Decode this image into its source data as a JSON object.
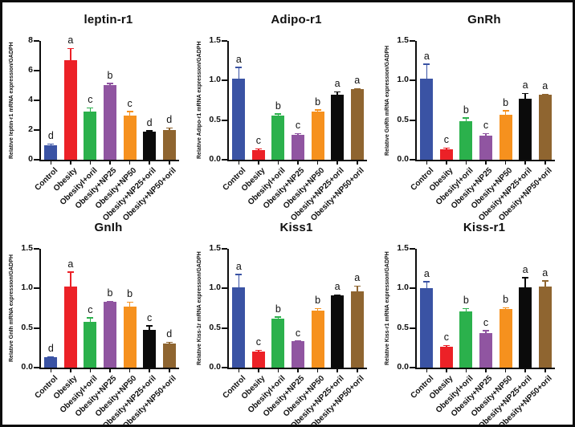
{
  "figure": {
    "background": "#ffffff",
    "border_color": "#0d0d0d"
  },
  "palette": {
    "bar_colors": [
      "#3A53A4",
      "#EC2127",
      "#2BB14C",
      "#9055A1",
      "#F6911E",
      "#0B0B0B",
      "#8F6530"
    ],
    "axis_color": "#0d0d0d",
    "letter_color": "#111111"
  },
  "chart_data": [
    {
      "type": "bar",
      "title": "leptin-r1",
      "xlabel": "",
      "ylabel": "Relative leptin-r1 mRNA expression/GADPH",
      "categories": [
        "Control",
        "Obesity",
        "Obesityl+oril",
        "Obesity+NP25",
        "Obesity+NP50",
        "Obesity+NP25+oril",
        "Obesity+NP50+oril"
      ],
      "values": [
        1.0,
        6.7,
        3.25,
        5.05,
        3.0,
        1.9,
        2.0
      ],
      "errors": [
        0.08,
        0.8,
        0.25,
        0.1,
        0.25,
        0.06,
        0.15
      ],
      "letters": [
        "d",
        "a",
        "c",
        "b",
        "c",
        "d",
        "d"
      ],
      "ylim": [
        0,
        8
      ],
      "yticks": [
        "0",
        "2",
        "4",
        "6",
        "8"
      ],
      "grid": false,
      "legend": false
    },
    {
      "type": "bar",
      "title": "Adipo-r1",
      "xlabel": "",
      "ylabel": "Relative Adipo-r1 mRNA expression/GADPH",
      "categories": [
        "Control",
        "Obesity",
        "Obesityl+oril",
        "Obesity+NP25",
        "Obesity+NP50",
        "Obesity+NP25+oril",
        "Obesity+NP50+oril"
      ],
      "values": [
        1.02,
        0.12,
        0.56,
        0.31,
        0.61,
        0.82,
        0.89
      ],
      "errors": [
        0.15,
        0.02,
        0.02,
        0.02,
        0.02,
        0.04,
        0.01
      ],
      "letters": [
        "a",
        "c",
        "b",
        "c",
        "b",
        "a",
        "a"
      ],
      "ylim": [
        0,
        1.5
      ],
      "yticks": [
        "0.0",
        "0.5",
        "1.0",
        "1.5"
      ],
      "grid": false,
      "legend": false
    },
    {
      "type": "bar",
      "title": "GnRh",
      "xlabel": "",
      "ylabel": "Relative GnRh mRNA expression/GADPH",
      "categories": [
        "Control",
        "Obesity",
        "Obesityl+oril",
        "Obesity+NP25",
        "Obesity+NP50",
        "Obesity+NP25+oril",
        "Obesity+NP50+oril"
      ],
      "values": [
        1.02,
        0.13,
        0.49,
        0.3,
        0.57,
        0.77,
        0.82
      ],
      "errors": [
        0.19,
        0.02,
        0.04,
        0.03,
        0.05,
        0.07,
        0.01
      ],
      "letters": [
        "a",
        "c",
        "b",
        "c",
        "b",
        "a",
        "a"
      ],
      "ylim": [
        0,
        1.5
      ],
      "yticks": [
        "0.0",
        "0.5",
        "1.0",
        "1.5"
      ],
      "grid": false,
      "legend": false
    },
    {
      "type": "bar",
      "title": "GnIh",
      "xlabel": "",
      "ylabel": "Relative GnIh mRNA expression/GADPH",
      "categories": [
        "Control",
        "Obesity",
        "Obesityl+oril",
        "Obesity+NP25",
        "Obesity+NP50",
        "Obesity+NP25+oril",
        "Obesity+NP50+oril"
      ],
      "values": [
        0.13,
        1.02,
        0.58,
        0.83,
        0.77,
        0.48,
        0.3
      ],
      "errors": [
        0.01,
        0.19,
        0.05,
        0.01,
        0.06,
        0.05,
        0.02
      ],
      "letters": [
        "d",
        "a",
        "c",
        "b",
        "b",
        "c",
        "d"
      ],
      "ylim": [
        0,
        1.5
      ],
      "yticks": [
        "0.0",
        "0.5",
        "1.0",
        "1.5"
      ],
      "grid": false,
      "legend": false
    },
    {
      "type": "bar",
      "title": "Kiss1",
      "xlabel": "",
      "ylabel": "Relative Kiss-1r mRNA expression/GADPH",
      "categories": [
        "Control",
        "Obesity",
        "Obesityl+oril",
        "Obesity+NP25",
        "Obesity+NP50",
        "Obesity+NP25+oril",
        "Obesity+NP50+oril"
      ],
      "values": [
        1.01,
        0.2,
        0.62,
        0.33,
        0.72,
        0.91,
        0.96
      ],
      "errors": [
        0.17,
        0.02,
        0.02,
        0.01,
        0.03,
        0.01,
        0.07
      ],
      "letters": [
        "a",
        "c",
        "b",
        "c",
        "b",
        "a",
        "a"
      ],
      "ylim": [
        0,
        1.5
      ],
      "yticks": [
        "0.0",
        "0.5",
        "1.0",
        "1.5"
      ],
      "grid": false,
      "legend": false
    },
    {
      "type": "bar",
      "title": "Kiss-r1",
      "xlabel": "",
      "ylabel": "Relative Kiss-r1 mRNA expression/GADPH",
      "categories": [
        "Control",
        "Obesity",
        "Obesityl+oril",
        "Obesity+NP25",
        "Obesity+NP50",
        "Obesity+NP25+oril",
        "Obesity+NP50+oril"
      ],
      "values": [
        1.0,
        0.26,
        0.71,
        0.44,
        0.74,
        1.01,
        1.02
      ],
      "errors": [
        0.09,
        0.02,
        0.04,
        0.03,
        0.02,
        0.13,
        0.08
      ],
      "letters": [
        "a",
        "c",
        "b",
        "c",
        "b",
        "a",
        "a"
      ],
      "ylim": [
        0,
        1.5
      ],
      "yticks": [
        "0.0",
        "0.5",
        "1.0",
        "1.5"
      ],
      "grid": false,
      "legend": false
    }
  ]
}
